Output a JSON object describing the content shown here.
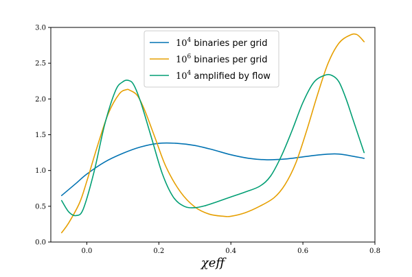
{
  "chart_data": {
    "type": "line",
    "xlabel": "χeff",
    "ylabel": "",
    "xlim": [
      -0.1,
      0.8
    ],
    "ylim": [
      0.0,
      3.0
    ],
    "x_ticks": [
      {
        "value": 0.0,
        "label": "0.0"
      },
      {
        "value": 0.2,
        "label": "0.2"
      },
      {
        "value": 0.4,
        "label": "0.4"
      },
      {
        "value": 0.6,
        "label": "0.6"
      },
      {
        "value": 0.8,
        "label": "0.8"
      }
    ],
    "y_ticks": [
      {
        "value": 0.0,
        "label": "0.0"
      },
      {
        "value": 0.5,
        "label": "0.5"
      },
      {
        "value": 1.0,
        "label": "1.0"
      },
      {
        "value": 1.5,
        "label": "1.5"
      },
      {
        "value": 2.0,
        "label": "2.0"
      },
      {
        "value": 2.5,
        "label": "2.5"
      },
      {
        "value": 3.0,
        "label": "3.0"
      }
    ],
    "grid": false,
    "legend_position": "top-center",
    "series": [
      {
        "name": "10^4 binaries per grid",
        "legend_base": "10",
        "legend_exp": "4",
        "legend_text": " binaries per grid",
        "color": "#0072b2",
        "x": [
          -0.07,
          -0.03,
          0.0,
          0.05,
          0.1,
          0.15,
          0.2,
          0.25,
          0.3,
          0.35,
          0.4,
          0.45,
          0.5,
          0.55,
          0.6,
          0.65,
          0.7,
          0.77
        ],
        "y": [
          0.65,
          0.82,
          0.95,
          1.12,
          1.24,
          1.33,
          1.38,
          1.38,
          1.35,
          1.29,
          1.22,
          1.17,
          1.15,
          1.16,
          1.19,
          1.22,
          1.23,
          1.17
        ]
      },
      {
        "name": "10^6 binaries per grid",
        "legend_base": "10",
        "legend_exp": "6",
        "legend_text": " binaries per grid",
        "color": "#e69f00",
        "x": [
          -0.07,
          -0.05,
          -0.02,
          0.0,
          0.03,
          0.06,
          0.09,
          0.11,
          0.12,
          0.14,
          0.16,
          0.19,
          0.22,
          0.26,
          0.3,
          0.34,
          0.38,
          0.4,
          0.44,
          0.48,
          0.52,
          0.55,
          0.58,
          0.61,
          0.64,
          0.67,
          0.7,
          0.73,
          0.75,
          0.77
        ],
        "y": [
          0.13,
          0.27,
          0.55,
          0.85,
          1.35,
          1.8,
          2.07,
          2.13,
          2.12,
          2.05,
          1.85,
          1.45,
          1.05,
          0.7,
          0.49,
          0.39,
          0.36,
          0.36,
          0.41,
          0.5,
          0.62,
          0.8,
          1.1,
          1.55,
          2.05,
          2.5,
          2.78,
          2.89,
          2.9,
          2.8
        ]
      },
      {
        "name": "10^4 amplified by flow",
        "legend_base": "10",
        "legend_exp": "4",
        "legend_text": " amplified by flow",
        "color": "#009e73",
        "x": [
          -0.07,
          -0.05,
          -0.03,
          -0.01,
          0.02,
          0.05,
          0.08,
          0.1,
          0.115,
          0.13,
          0.15,
          0.18,
          0.21,
          0.24,
          0.27,
          0.3,
          0.33,
          0.36,
          0.4,
          0.44,
          0.48,
          0.51,
          0.54,
          0.57,
          0.6,
          0.63,
          0.66,
          0.68,
          0.7,
          0.72,
          0.74,
          0.77
        ],
        "y": [
          0.58,
          0.42,
          0.37,
          0.46,
          0.98,
          1.65,
          2.12,
          2.24,
          2.26,
          2.2,
          1.95,
          1.45,
          0.95,
          0.63,
          0.5,
          0.48,
          0.51,
          0.56,
          0.63,
          0.7,
          0.78,
          0.92,
          1.2,
          1.56,
          1.95,
          2.23,
          2.33,
          2.33,
          2.24,
          2.0,
          1.7,
          1.25
        ]
      }
    ]
  }
}
